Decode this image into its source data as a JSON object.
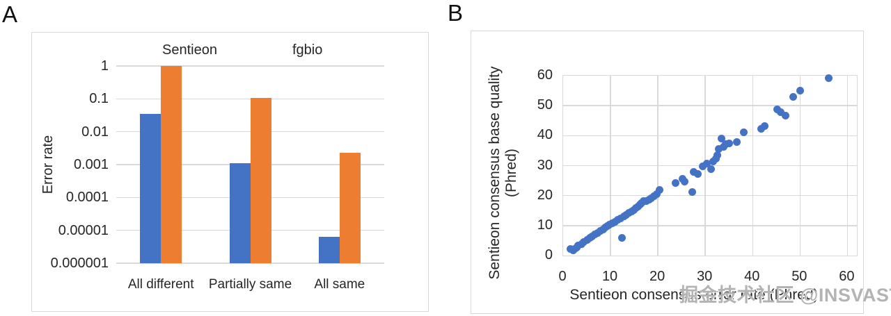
{
  "figure": {
    "panel_a_label": "A",
    "panel_b_label": "B",
    "watermark": "掘金技术社区 @INSVAST"
  },
  "colors": {
    "sentieon_blue": "#4472C4",
    "fgbio_orange": "#ED7D31",
    "gridline": "#D9D9D9",
    "text": "#262626",
    "watermark_gray": "#B3B3B3"
  },
  "chart_data": [
    {
      "id": "panel_a",
      "type": "bar",
      "ylabel": "Error rate",
      "yscale": "log",
      "ylim": [
        1e-06,
        1
      ],
      "ytick_labels": [
        "1",
        "0.1",
        "0.01",
        "0.001",
        "0.0001",
        "0.00001",
        "0.000001"
      ],
      "categories": [
        "All different",
        "Partially same",
        "All same"
      ],
      "series": [
        {
          "name": "Sentieon",
          "color": "#4472C4",
          "values": [
            0.035,
            0.0011,
            6.5e-06
          ]
        },
        {
          "name": "fgbio",
          "color": "#ED7D31",
          "values": [
            1.0,
            0.105,
            0.0023
          ]
        }
      ],
      "legend_position": "top",
      "grid": "horizontal"
    },
    {
      "id": "panel_b",
      "type": "scatter",
      "xlabel": "Sentieon consensus error rate (Phred)",
      "ylabel_line1": "Sentieon consensus base quality",
      "ylabel_line2": "(Phred)",
      "xlim": [
        0,
        62
      ],
      "ylim": [
        0,
        60
      ],
      "xticks": [
        0,
        10,
        20,
        30,
        40,
        50,
        60
      ],
      "yticks": [
        0,
        10,
        20,
        30,
        40,
        50,
        60
      ],
      "grid": "both",
      "marker_color": "#4472C4",
      "points": [
        [
          1.6,
          2.1
        ],
        [
          2.1,
          1.8
        ],
        [
          2.4,
          2.3
        ],
        [
          2.8,
          2.7
        ],
        [
          3.2,
          3.3
        ],
        [
          3.9,
          3.8
        ],
        [
          4.4,
          4.5
        ],
        [
          5.0,
          5.3
        ],
        [
          5.6,
          5.9
        ],
        [
          6.1,
          6.4
        ],
        [
          6.7,
          7.0
        ],
        [
          7.2,
          7.6
        ],
        [
          7.9,
          8.2
        ],
        [
          8.4,
          8.7
        ],
        [
          8.9,
          9.4
        ],
        [
          9.4,
          9.9
        ],
        [
          9.8,
          10.3
        ],
        [
          10.3,
          10.8
        ],
        [
          10.9,
          11.3
        ],
        [
          11.5,
          12.0
        ],
        [
          12.1,
          12.4
        ],
        [
          12.4,
          6.0
        ],
        [
          12.8,
          13.0
        ],
        [
          13.3,
          13.6
        ],
        [
          13.9,
          14.2
        ],
        [
          14.4,
          14.7
        ],
        [
          14.9,
          15.2
        ],
        [
          15.3,
          15.8
        ],
        [
          15.8,
          16.3
        ],
        [
          16.2,
          17.0
        ],
        [
          16.6,
          17.5
        ],
        [
          17.0,
          18.1
        ],
        [
          17.6,
          18.2
        ],
        [
          18.1,
          18.7
        ],
        [
          18.6,
          19.2
        ],
        [
          19.2,
          19.7
        ],
        [
          19.8,
          20.6
        ],
        [
          20.4,
          21.8
        ],
        [
          23.8,
          24.1
        ],
        [
          25.2,
          25.6
        ],
        [
          25.7,
          24.7
        ],
        [
          27.3,
          21.2
        ],
        [
          27.5,
          27.9
        ],
        [
          28.4,
          27.3
        ],
        [
          29.5,
          29.8
        ],
        [
          30.4,
          30.7
        ],
        [
          31.2,
          28.9
        ],
        [
          31.7,
          31.3
        ],
        [
          32.3,
          32.4
        ],
        [
          32.6,
          33.5
        ],
        [
          32.9,
          35.5
        ],
        [
          33.4,
          39.1
        ],
        [
          33.8,
          36.3
        ],
        [
          34.3,
          37.2
        ],
        [
          35.1,
          37.5
        ],
        [
          36.6,
          37.8
        ],
        [
          38.1,
          41.2
        ],
        [
          41.8,
          42.2
        ],
        [
          42.6,
          43.2
        ],
        [
          45.2,
          48.8
        ],
        [
          45.9,
          47.8
        ],
        [
          47.0,
          46.7
        ],
        [
          48.6,
          52.9
        ],
        [
          50.0,
          55.1
        ],
        [
          56.1,
          59.2
        ]
      ]
    }
  ]
}
